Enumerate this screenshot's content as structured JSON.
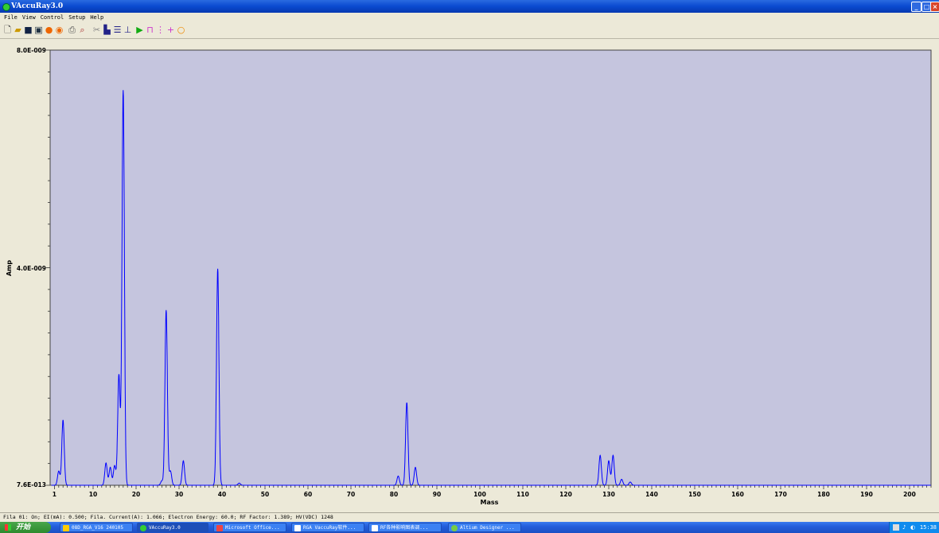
{
  "window": {
    "title": "VAccuRay3.0"
  },
  "menu": [
    "File",
    "View",
    "Control",
    "Setup",
    "Help"
  ],
  "toolbar_icons": [
    "new-icon",
    "open-icon",
    "save-icon",
    "save-all-icon",
    "record-icon",
    "stop-icon",
    "print-icon",
    "print-preview-icon",
    "cut-icon",
    "bar-chart-icon",
    "list-icon",
    "peak-icon",
    "play-icon",
    "spectrum-icon",
    "table-icon",
    "add-icon",
    "circle-icon"
  ],
  "chart_data": {
    "type": "line",
    "xlabel": "Mass",
    "ylabel": "Amp",
    "xlim": [
      0,
      205
    ],
    "ylim": [
      7.6e-13,
      8e-09
    ],
    "x_ticks": [
      "1",
      "10",
      "20",
      "30",
      "40",
      "50",
      "60",
      "70",
      "80",
      "90",
      "100",
      "110",
      "120",
      "130",
      "140",
      "150",
      "160",
      "170",
      "180",
      "190",
      "200"
    ],
    "y_tick_labels": [
      "8.0E-009",
      "4.0E-009",
      "7.6E-013"
    ],
    "background": "#c5c5de",
    "line_color": "#0000ff",
    "grid": false,
    "peaks": [
      {
        "x": 2,
        "y": 2.6e-10
      },
      {
        "x": 3,
        "y": 1.2e-09
      },
      {
        "x": 13,
        "y": 4.1e-10
      },
      {
        "x": 14,
        "y": 3.3e-10
      },
      {
        "x": 15,
        "y": 3.6e-10
      },
      {
        "x": 16,
        "y": 2.03e-09
      },
      {
        "x": 17,
        "y": 7.26e-09
      },
      {
        "x": 26,
        "y": 8e-11
      },
      {
        "x": 27,
        "y": 3.22e-09
      },
      {
        "x": 28,
        "y": 2.6e-10
      },
      {
        "x": 31,
        "y": 4.5e-10
      },
      {
        "x": 39,
        "y": 3.98e-09
      },
      {
        "x": 44,
        "y": 4e-11
      },
      {
        "x": 81,
        "y": 1.7e-10
      },
      {
        "x": 83,
        "y": 1.52e-09
      },
      {
        "x": 85,
        "y": 3.3e-10
      },
      {
        "x": 128,
        "y": 5.5e-10
      },
      {
        "x": 130,
        "y": 4.5e-10
      },
      {
        "x": 131,
        "y": 5.5e-10
      },
      {
        "x": 133,
        "y": 1.1e-10
      },
      {
        "x": 135,
        "y": 6e-11
      }
    ]
  },
  "status_bar": "Fila 01: On;  EI(mA): 0.500;  Fila. Current(A): 1.066;  Electron Energy: 60.0;  RF Factor: 1.389;  HV(VDC) 1248",
  "taskbar": {
    "start_label": "开始",
    "tasks": [
      "08D_RGA_V16 240105",
      "VAccuRay3.0",
      "Microsoft Office...",
      "RGA VaccuRay软件...",
      "RF各种影响图表调...",
      "Altium Designer ..."
    ],
    "clock": "15:38"
  },
  "colors": {
    "title_bar": "#0a4ad0",
    "plot_bg": "#c5c5de",
    "trace": "#0000ff",
    "taskbar": "#245edb",
    "start": "#3a9a3a"
  }
}
